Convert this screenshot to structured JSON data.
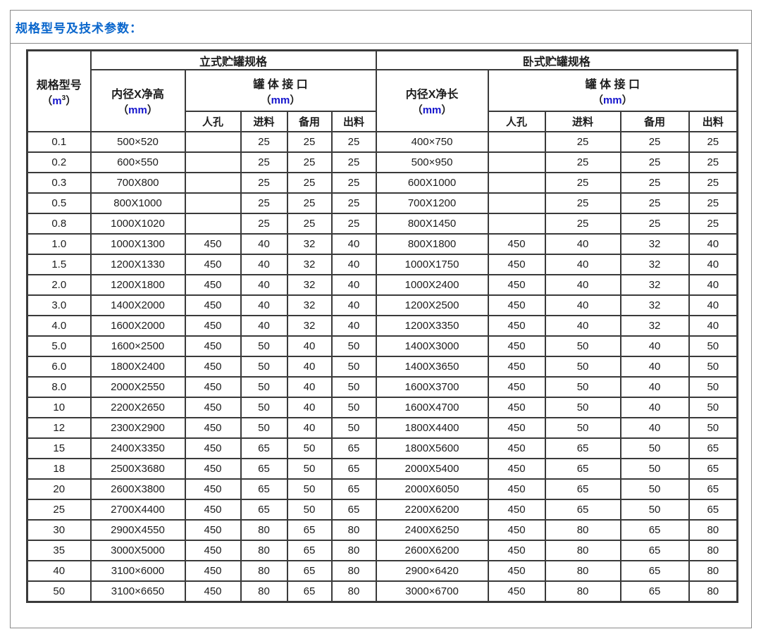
{
  "title": "规格型号及技术参数：",
  "table": {
    "col_model": {
      "label": "规格型号",
      "unit_open": "（",
      "unit_letter": "m",
      "unit_sup": "3",
      "unit_close": "）"
    },
    "groups": {
      "vertical": {
        "title": "立式贮罐规格",
        "size_label": "内径X净高"
      },
      "horizontal": {
        "title": "卧式贮罐规格",
        "size_label": "内径X净长"
      }
    },
    "size_unit": {
      "open": "（",
      "letters": "mm",
      "close": "）"
    },
    "port_header": {
      "label": "罐 体 接 口",
      "unit_open": "（",
      "unit_letters": "mm",
      "unit_close": "）"
    },
    "sub_headers": [
      "人孔",
      "进料",
      "备用",
      "出料"
    ],
    "rows": [
      {
        "model": "0.1",
        "vertical": [
          "500×520",
          "",
          "25",
          "25",
          "25"
        ],
        "horizontal": [
          "400×750",
          "",
          "25",
          "25",
          "25"
        ]
      },
      {
        "model": "0.2",
        "vertical": [
          "600×550",
          "",
          "25",
          "25",
          "25"
        ],
        "horizontal": [
          "500×950",
          "",
          "25",
          "25",
          "25"
        ]
      },
      {
        "model": "0.3",
        "vertical": [
          "700X800",
          "",
          "25",
          "25",
          "25"
        ],
        "horizontal": [
          "600X1000",
          "",
          "25",
          "25",
          "25"
        ]
      },
      {
        "model": "0.5",
        "vertical": [
          "800X1000",
          "",
          "25",
          "25",
          "25"
        ],
        "horizontal": [
          "700X1200",
          "",
          "25",
          "25",
          "25"
        ]
      },
      {
        "model": "0.8",
        "vertical": [
          "1000X1020",
          "",
          "25",
          "25",
          "25"
        ],
        "horizontal": [
          "800X1450",
          "",
          "25",
          "25",
          "25"
        ]
      },
      {
        "model": "1.0",
        "vertical": [
          "1000X1300",
          "450",
          "40",
          "32",
          "40"
        ],
        "horizontal": [
          "800X1800",
          "450",
          "40",
          "32",
          "40"
        ]
      },
      {
        "model": "1.5",
        "vertical": [
          "1200X1330",
          "450",
          "40",
          "32",
          "40"
        ],
        "horizontal": [
          "1000X1750",
          "450",
          "40",
          "32",
          "40"
        ]
      },
      {
        "model": "2.0",
        "vertical": [
          "1200X1800",
          "450",
          "40",
          "32",
          "40"
        ],
        "horizontal": [
          "1000X2400",
          "450",
          "40",
          "32",
          "40"
        ]
      },
      {
        "model": "3.0",
        "vertical": [
          "1400X2000",
          "450",
          "40",
          "32",
          "40"
        ],
        "horizontal": [
          "1200X2500",
          "450",
          "40",
          "32",
          "40"
        ]
      },
      {
        "model": "4.0",
        "vertical": [
          "1600X2000",
          "450",
          "40",
          "32",
          "40"
        ],
        "horizontal": [
          "1200X3350",
          "450",
          "40",
          "32",
          "40"
        ]
      },
      {
        "model": "5.0",
        "vertical": [
          "1600×2500",
          "450",
          "50",
          "40",
          "50"
        ],
        "horizontal": [
          "1400X3000",
          "450",
          "50",
          "40",
          "50"
        ]
      },
      {
        "model": "6.0",
        "vertical": [
          "1800X2400",
          "450",
          "50",
          "40",
          "50"
        ],
        "horizontal": [
          "1400X3650",
          "450",
          "50",
          "40",
          "50"
        ]
      },
      {
        "model": "8.0",
        "vertical": [
          "2000X2550",
          "450",
          "50",
          "40",
          "50"
        ],
        "horizontal": [
          "1600X3700",
          "450",
          "50",
          "40",
          "50"
        ]
      },
      {
        "model": "10",
        "vertical": [
          "2200X2650",
          "450",
          "50",
          "40",
          "50"
        ],
        "horizontal": [
          "1600X4700",
          "450",
          "50",
          "40",
          "50"
        ]
      },
      {
        "model": "12",
        "vertical": [
          "2300X2900",
          "450",
          "50",
          "40",
          "50"
        ],
        "horizontal": [
          "1800X4400",
          "450",
          "50",
          "40",
          "50"
        ]
      },
      {
        "model": "15",
        "vertical": [
          "2400X3350",
          "450",
          "65",
          "50",
          "65"
        ],
        "horizontal": [
          "1800X5600",
          "450",
          "65",
          "50",
          "65"
        ]
      },
      {
        "model": "18",
        "vertical": [
          "2500X3680",
          "450",
          "65",
          "50",
          "65"
        ],
        "horizontal": [
          "2000X5400",
          "450",
          "65",
          "50",
          "65"
        ]
      },
      {
        "model": "20",
        "vertical": [
          "2600X3800",
          "450",
          "65",
          "50",
          "65"
        ],
        "horizontal": [
          "2000X6050",
          "450",
          "65",
          "50",
          "65"
        ]
      },
      {
        "model": "25",
        "vertical": [
          "2700X4400",
          "450",
          "65",
          "50",
          "65"
        ],
        "horizontal": [
          "2200X6200",
          "450",
          "65",
          "50",
          "65"
        ]
      },
      {
        "model": "30",
        "vertical": [
          "2900X4550",
          "450",
          "80",
          "65",
          "80"
        ],
        "horizontal": [
          "2400X6250",
          "450",
          "80",
          "65",
          "80"
        ]
      },
      {
        "model": "35",
        "vertical": [
          "3000X5000",
          "450",
          "80",
          "65",
          "80"
        ],
        "horizontal": [
          "2600X6200",
          "450",
          "80",
          "65",
          "80"
        ]
      },
      {
        "model": "40",
        "vertical": [
          "3100×6000",
          "450",
          "80",
          "65",
          "80"
        ],
        "horizontal": [
          "2900×6420",
          "450",
          "80",
          "65",
          "80"
        ]
      },
      {
        "model": "50",
        "vertical": [
          "3100×6650",
          "450",
          "80",
          "65",
          "80"
        ],
        "horizontal": [
          "3000×6700",
          "450",
          "80",
          "65",
          "80"
        ]
      }
    ]
  }
}
